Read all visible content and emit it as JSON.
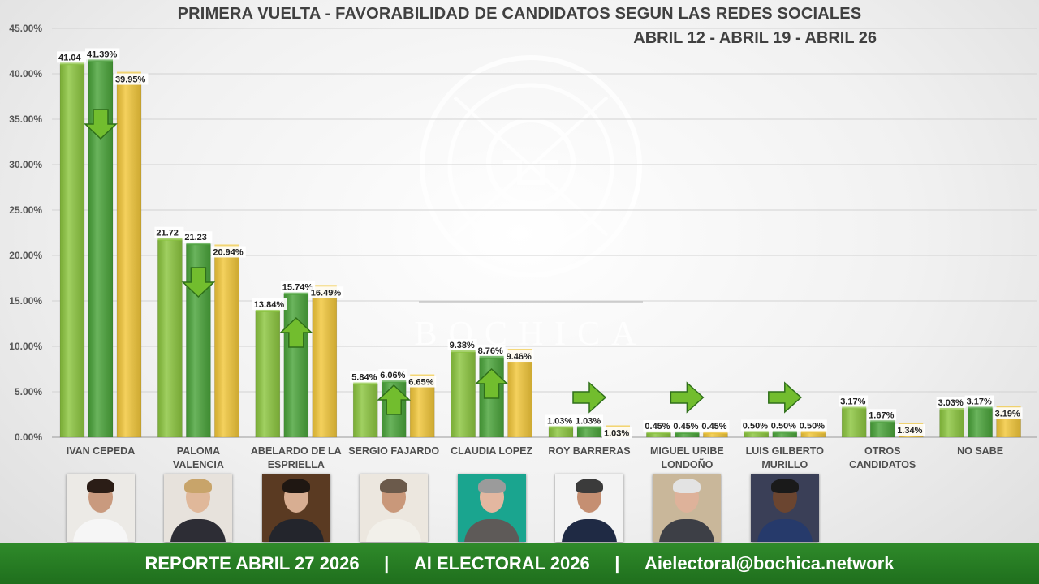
{
  "chart_data": {
    "type": "bar",
    "title": "PRIMERA VUELTA - FAVORABILIDAD DE CANDIDATOS SEGUN LAS REDES SOCIALES",
    "subtitle": "ABRIL 12 - ABRIL 19 - ABRIL 26",
    "ylim": [
      0,
      45
    ],
    "yticks": [
      "0.00%",
      "5.00%",
      "10.00%",
      "15.00%",
      "20.00%",
      "25.00%",
      "30.00%",
      "35.00%",
      "40.00%",
      "45.00%"
    ],
    "grid": true,
    "categories": [
      [
        "IVAN CEPEDA"
      ],
      [
        "PALOMA",
        "VALENCIA"
      ],
      [
        "ABELARDO DE LA",
        "ESPRIELLA"
      ],
      [
        "SERGIO FAJARDO"
      ],
      [
        "CLAUDIA LOPEZ"
      ],
      [
        "ROY BARRERAS"
      ],
      [
        "MIGUEL URIBE",
        "LONDOÑO"
      ],
      [
        "LUIS GILBERTO",
        "MURILLO"
      ],
      [
        "OTROS",
        "CANDIDATOS"
      ],
      [
        "NO SABE"
      ]
    ],
    "series": [
      {
        "color": "#8cc63f",
        "values": [
          41.04,
          21.72,
          13.84,
          5.84,
          9.38,
          1.03,
          0.45,
          0.5,
          3.17,
          3.03
        ],
        "labels": [
          "41.04",
          "21.72",
          "13.84%",
          "5.84%",
          "9.38%",
          "1.03%",
          "0.45%",
          "0.50%",
          "3.17%",
          "3.03%"
        ]
      },
      {
        "color": "#4aa43a",
        "values": [
          41.39,
          21.23,
          15.74,
          6.06,
          8.76,
          1.03,
          0.45,
          0.5,
          1.67,
          3.17
        ],
        "labels": [
          "41.39%",
          "21.23",
          "15.74%",
          "6.06%",
          "8.76%",
          "1.03%",
          "0.45%",
          "0.50%",
          "1.67%",
          "3.17%"
        ]
      },
      {
        "color": "#f2c73a",
        "values": [
          39.95,
          20.94,
          16.49,
          6.65,
          9.46,
          1.03,
          0.45,
          0.5,
          1.34,
          3.19
        ],
        "labels": [
          "39.95%",
          "20.94%",
          "16.49%",
          "6.65%",
          "9.46%",
          "1.03%",
          "0.45%",
          "0.50%",
          "1.34%",
          "3.19%"
        ]
      }
    ],
    "trend_arrows": [
      "down",
      "down",
      "up",
      "up",
      "up",
      "right",
      "right",
      "right",
      "",
      ""
    ],
    "watermark": "BOCHICA"
  },
  "photos": [
    {
      "bg": "#eceae6",
      "skin": "#c99a7e",
      "hair": "#2b1d16",
      "shirt": "#f6f6f6"
    },
    {
      "bg": "#e7e2dc",
      "skin": "#e0b89a",
      "hair": "#c8a46a",
      "shirt": "#2d2d35"
    },
    {
      "bg": "#5a3a22",
      "skin": "#d8ae92",
      "hair": "#1f1712",
      "shirt": "#23252c"
    },
    {
      "bg": "#ece7df",
      "skin": "#c9987a",
      "hair": "#6b5a4b",
      "shirt": "#f2f0ea"
    },
    {
      "bg": "#1aa58f",
      "skin": "#e3b7a0",
      "hair": "#9b9b9b",
      "shirt": "#5e5a58"
    },
    {
      "bg": "#f3f3f3",
      "skin": "#c58f72",
      "hair": "#3b3b3b",
      "shirt": "#1f2a44"
    },
    {
      "bg": "#c9b79a",
      "skin": "#deb29a",
      "hair": "#e3e3e3",
      "shirt": "#3d3f46"
    },
    {
      "bg": "#3a3f57",
      "skin": "#6b4530",
      "hair": "#1a1a1a",
      "shirt": "#263a6b"
    }
  ],
  "footer": {
    "report": "REPORTE ABRIL 27 2026",
    "sep": "|",
    "project": "AI ELECTORAL 2026",
    "email": "Aielectoral@bochica.network"
  }
}
